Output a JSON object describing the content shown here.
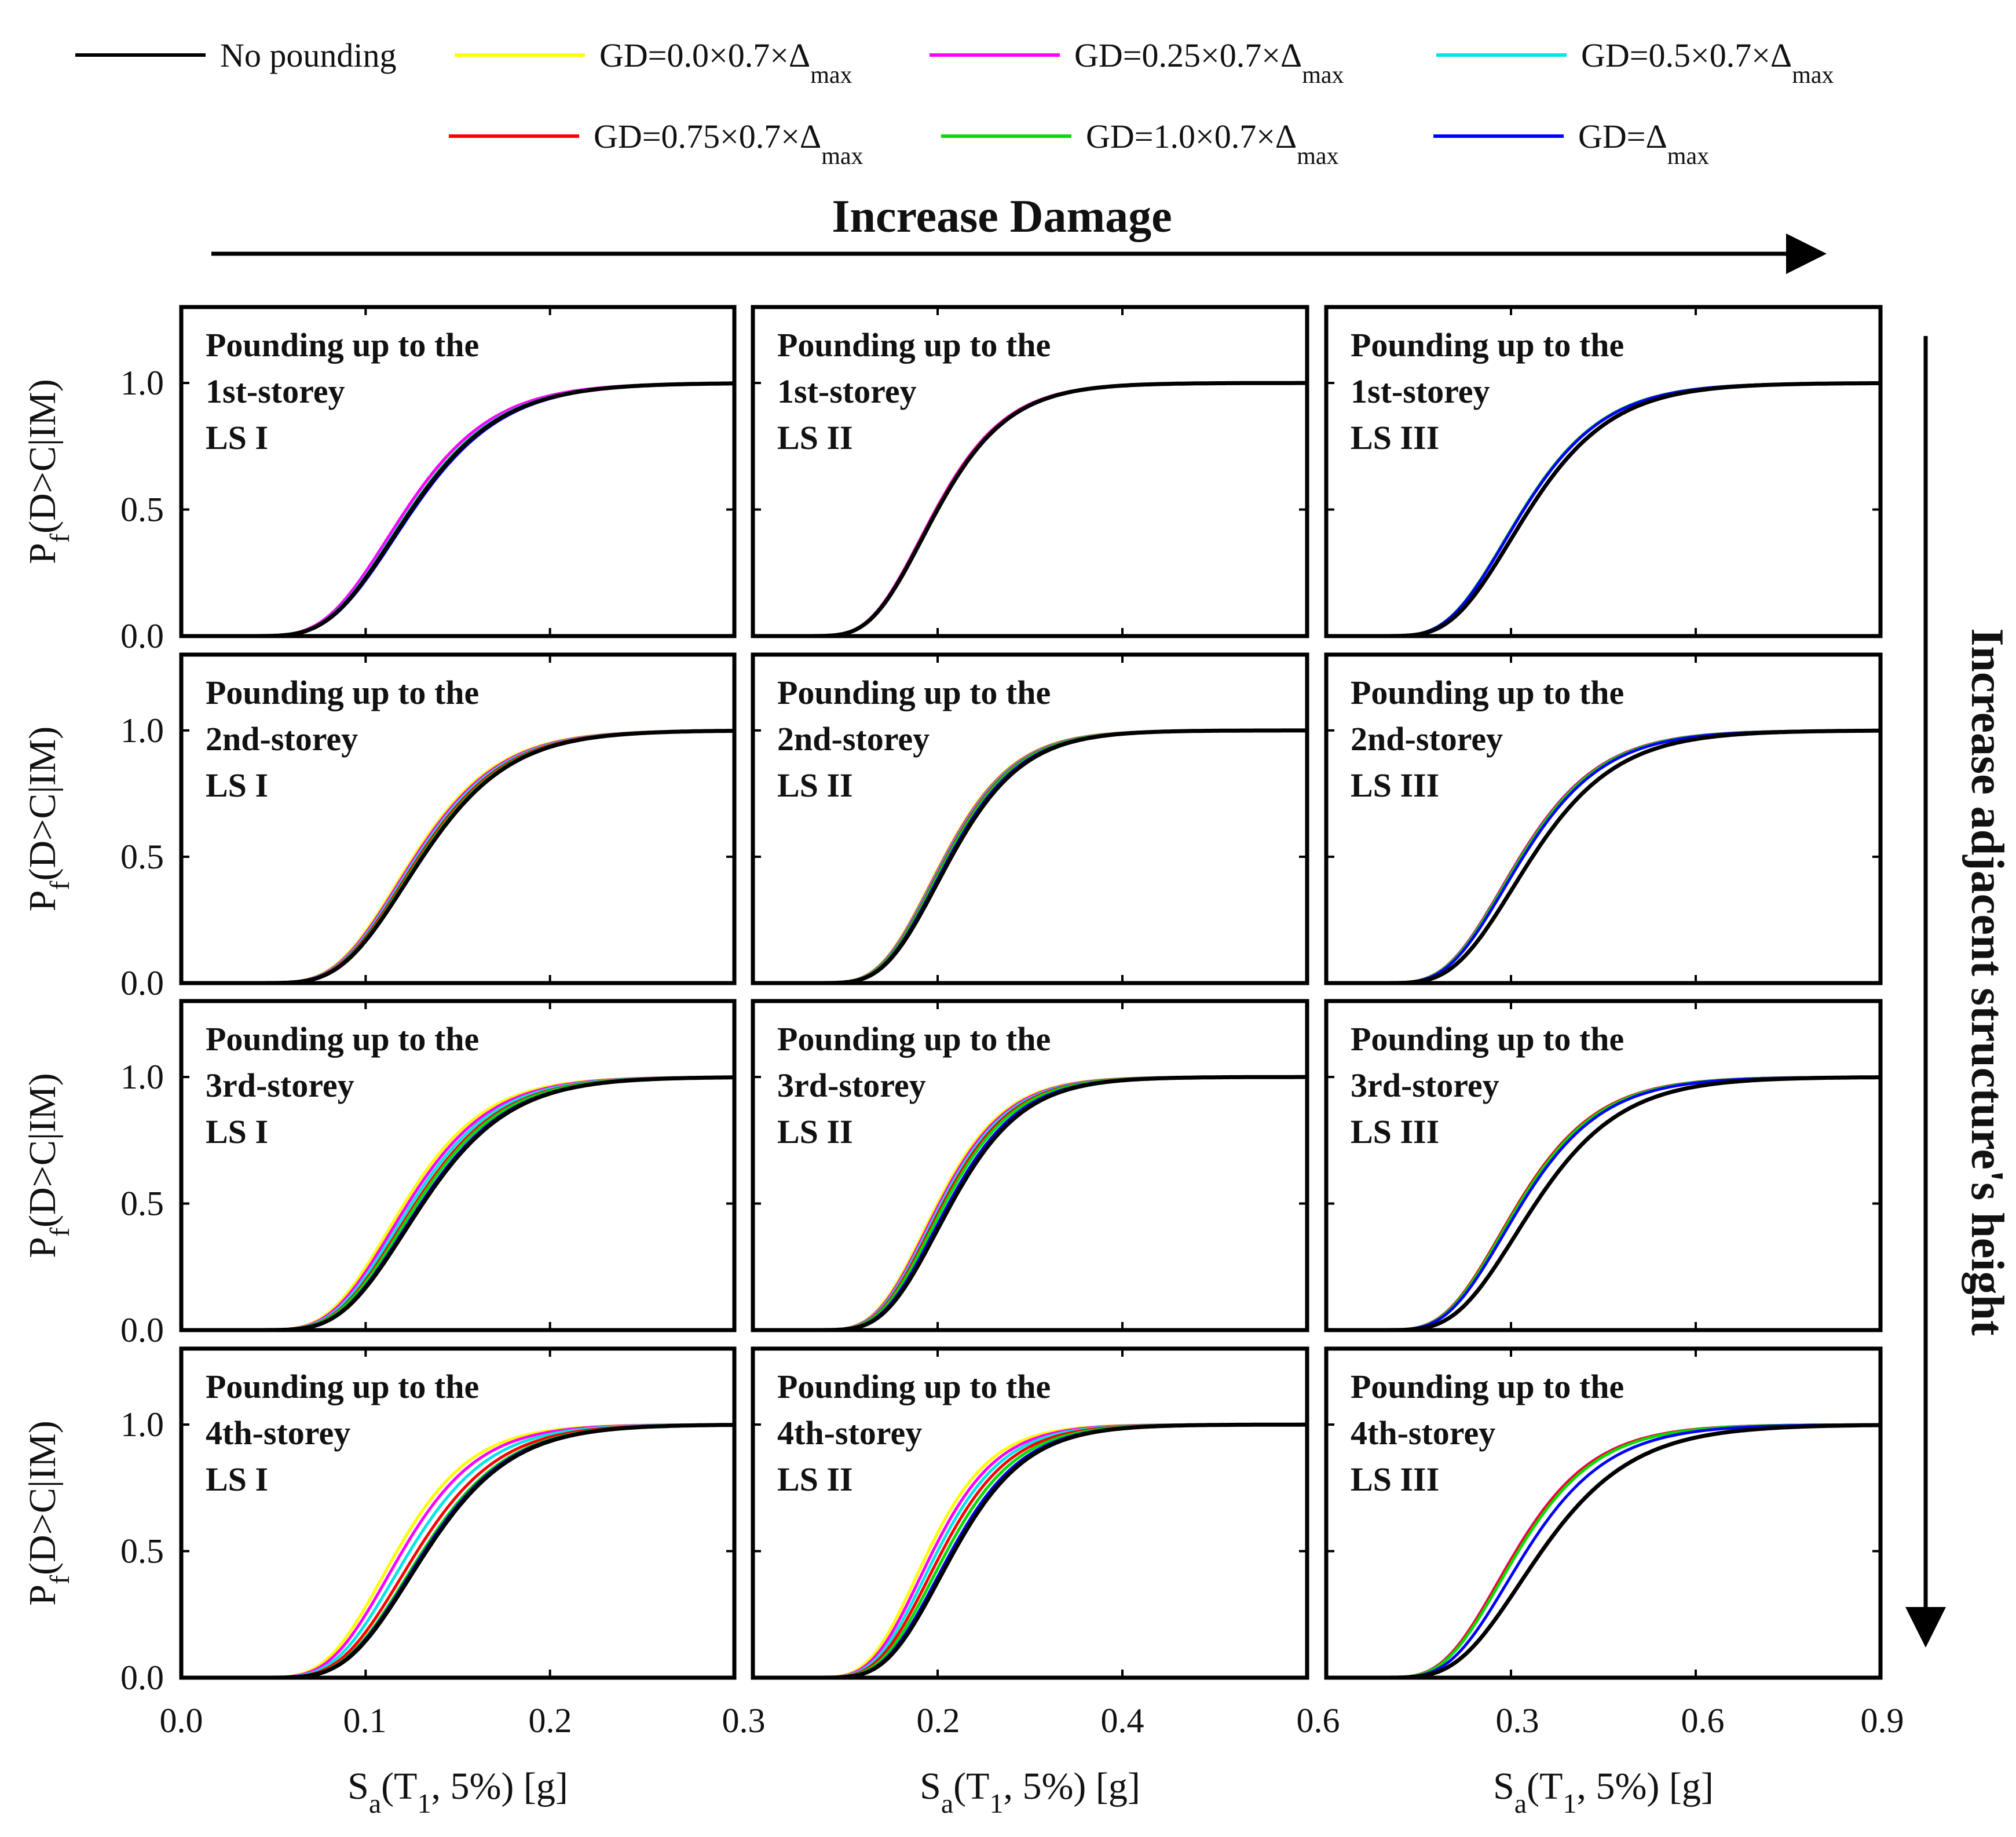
{
  "banner": {
    "top": "Increase Damage",
    "right": "Increase adjacent structure's height"
  },
  "y_axis": {
    "label_main": "P",
    "label_sub": "f",
    "label_rest": "(D>C|IM)",
    "ticks": [
      "0.0",
      "0.5",
      "1.0"
    ]
  },
  "x_axis": {
    "label_main": "S",
    "label_sub": "a",
    "label_paren_open": "(T",
    "label_paren_sub": "1",
    "label_rest": ", 5%) [g]",
    "tick_values": [
      [
        "0.0",
        "0.1",
        "0.2"
      ],
      [
        "0.3",
        "0.2",
        "0.4"
      ],
      [
        "0.6",
        "0.3",
        "0.6",
        "0.9"
      ]
    ]
  },
  "legend": [
    {
      "main": "No pounding",
      "sub": "",
      "color": "#000000"
    },
    {
      "main": "GD=0.0×0.7×Δ",
      "sub": "max",
      "color": "#ffff00"
    },
    {
      "main": "GD=0.25×0.7×Δ",
      "sub": "max",
      "color": "#ff00ff"
    },
    {
      "main": "GD=0.5×0.7×Δ",
      "sub": "max",
      "color": "#00e5e5"
    },
    {
      "main": "GD=0.75×0.7×Δ",
      "sub": "max",
      "color": "#ff0000"
    },
    {
      "main": "GD=1.0×0.7×Δ",
      "sub": "max",
      "color": "#00dd00"
    },
    {
      "main": "GD=Δ",
      "sub": "max",
      "color": "#0000ff"
    }
  ],
  "chart_data": [
    {
      "type": "line",
      "title": [
        "Pounding up to the",
        "1st-storey",
        "LS I"
      ],
      "xlim": [
        0,
        0.3
      ],
      "ylim": [
        0,
        1.3
      ],
      "xticks": [
        0.0,
        0.1,
        0.2,
        0.3
      ],
      "yticks": [
        0.0,
        0.5,
        1.0
      ],
      "series": [
        {
          "name": "No pounding",
          "median": 0.125,
          "beta": 0.3
        },
        {
          "name": "GD=0.0×0.7×Δmax",
          "median": 0.123,
          "beta": 0.3
        },
        {
          "name": "GD=0.25×0.7×Δmax",
          "median": 0.122,
          "beta": 0.3
        },
        {
          "name": "GD=0.5×0.7×Δmax",
          "median": 0.124,
          "beta": 0.3
        },
        {
          "name": "GD=0.75×0.7×Δmax",
          "median": 0.125,
          "beta": 0.3
        },
        {
          "name": "GD=1.0×0.7×Δmax",
          "median": 0.125,
          "beta": 0.3
        },
        {
          "name": "GD=Δmax",
          "median": 0.126,
          "beta": 0.3
        }
      ]
    },
    {
      "type": "line",
      "title": [
        "Pounding up to the",
        "1st-storey",
        "LS II"
      ],
      "xlim": [
        0,
        0.6
      ],
      "ylim": [
        0,
        1.3
      ],
      "xticks": [
        0.0,
        0.2,
        0.4,
        0.6
      ],
      "yticks": [
        0.0,
        0.5,
        1.0
      ],
      "series": [
        {
          "name": "No pounding",
          "median": 0.2,
          "beta": 0.3
        },
        {
          "name": "GD=0.0×0.7×Δmax",
          "median": 0.198,
          "beta": 0.3
        },
        {
          "name": "GD=0.25×0.7×Δmax",
          "median": 0.198,
          "beta": 0.3
        },
        {
          "name": "GD=0.5×0.7×Δmax",
          "median": 0.199,
          "beta": 0.3
        },
        {
          "name": "GD=0.75×0.7×Δmax",
          "median": 0.199,
          "beta": 0.3
        },
        {
          "name": "GD=1.0×0.7×Δmax",
          "median": 0.2,
          "beta": 0.3
        },
        {
          "name": "GD=Δmax",
          "median": 0.2,
          "beta": 0.3
        }
      ]
    },
    {
      "type": "line",
      "title": [
        "Pounding up to the",
        "1st-storey",
        "LS III"
      ],
      "xlim": [
        0,
        0.9
      ],
      "ylim": [
        0,
        1.3
      ],
      "xticks": [
        0.0,
        0.3,
        0.6,
        0.9
      ],
      "yticks": [
        0.0,
        0.5,
        1.0
      ],
      "series": [
        {
          "name": "No pounding",
          "median": 0.33,
          "beta": 0.32
        },
        {
          "name": "GD=0.0×0.7×Δmax",
          "median": 0.32,
          "beta": 0.32
        },
        {
          "name": "GD=0.25×0.7×Δmax",
          "median": 0.32,
          "beta": 0.32
        },
        {
          "name": "GD=0.5×0.7×Δmax",
          "median": 0.32,
          "beta": 0.32
        },
        {
          "name": "GD=0.75×0.7×Δmax",
          "median": 0.32,
          "beta": 0.32
        },
        {
          "name": "GD=1.0×0.7×Δmax",
          "median": 0.32,
          "beta": 0.32
        },
        {
          "name": "GD=Δmax",
          "median": 0.321,
          "beta": 0.32
        }
      ]
    },
    {
      "type": "line",
      "title": [
        "Pounding up to the",
        "2nd-storey",
        "LS I"
      ],
      "xlim": [
        0,
        0.3
      ],
      "ylim": [
        0,
        1.3
      ],
      "xticks": [
        0.0,
        0.1,
        0.2,
        0.3
      ],
      "yticks": [
        0.0,
        0.5,
        1.0
      ],
      "series": [
        {
          "name": "No pounding",
          "median": 0.131,
          "beta": 0.28
        },
        {
          "name": "GD=0.0×0.7×Δmax",
          "median": 0.126,
          "beta": 0.28
        },
        {
          "name": "GD=0.25×0.7×Δmax",
          "median": 0.127,
          "beta": 0.28
        },
        {
          "name": "GD=0.5×0.7×Δmax",
          "median": 0.128,
          "beta": 0.28
        },
        {
          "name": "GD=0.75×0.7×Δmax",
          "median": 0.129,
          "beta": 0.28
        },
        {
          "name": "GD=1.0×0.7×Δmax",
          "median": 0.13,
          "beta": 0.28
        },
        {
          "name": "GD=Δmax",
          "median": 0.131,
          "beta": 0.28
        }
      ]
    },
    {
      "type": "line",
      "title": [
        "Pounding up to the",
        "2nd-storey",
        "LS II"
      ],
      "xlim": [
        0,
        0.6
      ],
      "ylim": [
        0,
        1.3
      ],
      "xticks": [
        0.0,
        0.2,
        0.4,
        0.6
      ],
      "yticks": [
        0.0,
        0.5,
        1.0
      ],
      "series": [
        {
          "name": "No pounding",
          "median": 0.215,
          "beta": 0.28
        },
        {
          "name": "GD=0.0×0.7×Δmax",
          "median": 0.207,
          "beta": 0.28
        },
        {
          "name": "GD=0.25×0.7×Δmax",
          "median": 0.208,
          "beta": 0.28
        },
        {
          "name": "GD=0.5×0.7×Δmax",
          "median": 0.209,
          "beta": 0.28
        },
        {
          "name": "GD=0.75×0.7×Δmax",
          "median": 0.21,
          "beta": 0.28
        },
        {
          "name": "GD=1.0×0.7×Δmax",
          "median": 0.211,
          "beta": 0.28
        },
        {
          "name": "GD=Δmax",
          "median": 0.213,
          "beta": 0.28
        }
      ]
    },
    {
      "type": "line",
      "title": [
        "Pounding up to the",
        "2nd-storey",
        "LS III"
      ],
      "xlim": [
        0,
        0.9
      ],
      "ylim": [
        0,
        1.3
      ],
      "xticks": [
        0.0,
        0.3,
        0.6,
        0.9
      ],
      "yticks": [
        0.0,
        0.5,
        1.0
      ],
      "series": [
        {
          "name": "No pounding",
          "median": 0.335,
          "beta": 0.32
        },
        {
          "name": "GD=0.0×0.7×Δmax",
          "median": 0.315,
          "beta": 0.32
        },
        {
          "name": "GD=0.25×0.7×Δmax",
          "median": 0.315,
          "beta": 0.32
        },
        {
          "name": "GD=0.5×0.7×Δmax",
          "median": 0.316,
          "beta": 0.32
        },
        {
          "name": "GD=0.75×0.7×Δmax",
          "median": 0.316,
          "beta": 0.32
        },
        {
          "name": "GD=1.0×0.7×Δmax",
          "median": 0.317,
          "beta": 0.32
        },
        {
          "name": "GD=Δmax",
          "median": 0.32,
          "beta": 0.32
        }
      ]
    },
    {
      "type": "line",
      "title": [
        "Pounding up to the",
        "3rd-storey",
        "LS I"
      ],
      "xlim": [
        0,
        0.3
      ],
      "ylim": [
        0,
        1.3
      ],
      "xticks": [
        0.0,
        0.1,
        0.2,
        0.3
      ],
      "yticks": [
        0.0,
        0.5,
        1.0
      ],
      "series": [
        {
          "name": "No pounding",
          "median": 0.131,
          "beta": 0.28
        },
        {
          "name": "GD=0.0×0.7×Δmax",
          "median": 0.121,
          "beta": 0.28
        },
        {
          "name": "GD=0.25×0.7×Δmax",
          "median": 0.123,
          "beta": 0.28
        },
        {
          "name": "GD=0.5×0.7×Δmax",
          "median": 0.125,
          "beta": 0.28
        },
        {
          "name": "GD=0.75×0.7×Δmax",
          "median": 0.127,
          "beta": 0.28
        },
        {
          "name": "GD=1.0×0.7×Δmax",
          "median": 0.128,
          "beta": 0.28
        },
        {
          "name": "GD=Δmax",
          "median": 0.13,
          "beta": 0.28
        }
      ]
    },
    {
      "type": "line",
      "title": [
        "Pounding up to the",
        "3rd-storey",
        "LS II"
      ],
      "xlim": [
        0,
        0.6
      ],
      "ylim": [
        0,
        1.3
      ],
      "xticks": [
        0.0,
        0.2,
        0.4,
        0.6
      ],
      "yticks": [
        0.0,
        0.5,
        1.0
      ],
      "series": [
        {
          "name": "No pounding",
          "median": 0.215,
          "beta": 0.28
        },
        {
          "name": "GD=0.0×0.7×Δmax",
          "median": 0.2,
          "beta": 0.28
        },
        {
          "name": "GD=0.25×0.7×Δmax",
          "median": 0.202,
          "beta": 0.28
        },
        {
          "name": "GD=0.5×0.7×Δmax",
          "median": 0.204,
          "beta": 0.28
        },
        {
          "name": "GD=0.75×0.7×Δmax",
          "median": 0.206,
          "beta": 0.28
        },
        {
          "name": "GD=1.0×0.7×Δmax",
          "median": 0.208,
          "beta": 0.28
        },
        {
          "name": "GD=Δmax",
          "median": 0.212,
          "beta": 0.28
        }
      ]
    },
    {
      "type": "line",
      "title": [
        "Pounding up to the",
        "3rd-storey",
        "LS III"
      ],
      "xlim": [
        0,
        0.9
      ],
      "ylim": [
        0,
        1.3
      ],
      "xticks": [
        0.0,
        0.3,
        0.6,
        0.9
      ],
      "yticks": [
        0.0,
        0.5,
        1.0
      ],
      "series": [
        {
          "name": "No pounding",
          "median": 0.34,
          "beta": 0.32
        },
        {
          "name": "GD=0.0×0.7×Δmax",
          "median": 0.312,
          "beta": 0.32
        },
        {
          "name": "GD=0.25×0.7×Δmax",
          "median": 0.312,
          "beta": 0.32
        },
        {
          "name": "GD=0.5×0.7×Δmax",
          "median": 0.313,
          "beta": 0.32
        },
        {
          "name": "GD=0.75×0.7×Δmax",
          "median": 0.312,
          "beta": 0.32
        },
        {
          "name": "GD=1.0×0.7×Δmax",
          "median": 0.314,
          "beta": 0.32
        },
        {
          "name": "GD=Δmax",
          "median": 0.318,
          "beta": 0.32
        }
      ]
    },
    {
      "type": "line",
      "title": [
        "Pounding up to the",
        "4th-storey",
        "LS I"
      ],
      "xlim": [
        0,
        0.3
      ],
      "ylim": [
        0,
        1.3
      ],
      "xticks": [
        0.0,
        0.1,
        0.2,
        0.3
      ],
      "yticks": [
        0.0,
        0.5,
        1.0
      ],
      "series": [
        {
          "name": "No pounding",
          "median": 0.133,
          "beta": 0.27
        },
        {
          "name": "GD=0.0×0.7×Δmax",
          "median": 0.117,
          "beta": 0.27
        },
        {
          "name": "GD=0.25×0.7×Δmax",
          "median": 0.12,
          "beta": 0.27
        },
        {
          "name": "GD=0.5×0.7×Δmax",
          "median": 0.124,
          "beta": 0.27
        },
        {
          "name": "GD=0.75×0.7×Δmax",
          "median": 0.128,
          "beta": 0.27
        },
        {
          "name": "GD=1.0×0.7×Δmax",
          "median": 0.131,
          "beta": 0.27
        },
        {
          "name": "GD=Δmax",
          "median": 0.132,
          "beta": 0.27
        }
      ]
    },
    {
      "type": "line",
      "title": [
        "Pounding up to the",
        "4th-storey",
        "LS II"
      ],
      "xlim": [
        0,
        0.6
      ],
      "ylim": [
        0,
        1.3
      ],
      "xticks": [
        0.0,
        0.2,
        0.4,
        0.6
      ],
      "yticks": [
        0.0,
        0.5,
        1.0
      ],
      "series": [
        {
          "name": "No pounding",
          "median": 0.218,
          "beta": 0.28
        },
        {
          "name": "GD=0.0×0.7×Δmax",
          "median": 0.19,
          "beta": 0.28
        },
        {
          "name": "GD=0.25×0.7×Δmax",
          "median": 0.195,
          "beta": 0.28
        },
        {
          "name": "GD=0.5×0.7×Δmax",
          "median": 0.2,
          "beta": 0.28
        },
        {
          "name": "GD=0.75×0.7×Δmax",
          "median": 0.205,
          "beta": 0.28
        },
        {
          "name": "GD=1.0×0.7×Δmax",
          "median": 0.21,
          "beta": 0.28
        },
        {
          "name": "GD=Δmax",
          "median": 0.215,
          "beta": 0.28
        }
      ]
    },
    {
      "type": "line",
      "title": [
        "Pounding up to the",
        "4th-storey",
        "LS III"
      ],
      "xlim": [
        0,
        0.9
      ],
      "ylim": [
        0,
        1.3
      ],
      "xticks": [
        0.0,
        0.3,
        0.6,
        0.9
      ],
      "yticks": [
        0.0,
        0.5,
        1.0
      ],
      "series": [
        {
          "name": "No pounding",
          "median": 0.35,
          "beta": 0.33
        },
        {
          "name": "GD=0.0×0.7×Δmax",
          "median": 0.308,
          "beta": 0.32
        },
        {
          "name": "GD=0.25×0.7×Δmax",
          "median": 0.308,
          "beta": 0.32
        },
        {
          "name": "GD=0.5×0.7×Δmax",
          "median": 0.31,
          "beta": 0.32
        },
        {
          "name": "GD=0.75×0.7×Δmax",
          "median": 0.309,
          "beta": 0.32
        },
        {
          "name": "GD=1.0×0.7×Δmax",
          "median": 0.312,
          "beta": 0.32
        },
        {
          "name": "GD=Δmax",
          "median": 0.325,
          "beta": 0.32
        }
      ]
    }
  ]
}
